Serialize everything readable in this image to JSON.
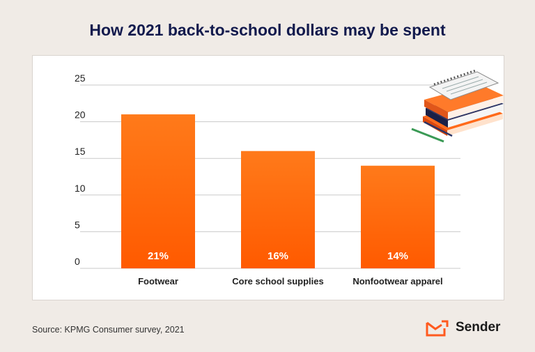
{
  "title": "How 2021 back-to-school dollars may be spent",
  "source": "Source: KPMG Consumer survey, 2021",
  "brand": {
    "name": "Sender",
    "logo_icon": "envelope-check-icon",
    "accent": "#ff5a1f"
  },
  "illustration": {
    "icon": "books-notebook-pencils-icon"
  },
  "colors": {
    "bar_top": "#ff7a1a",
    "bar_bottom": "#ff5a00",
    "grid": "#c9c9c9",
    "axis_text": "#222222",
    "title": "#121a4d"
  },
  "chart_data": {
    "type": "bar",
    "categories": [
      "Footwear",
      "Core school supplies",
      "Nonfootwear apparel"
    ],
    "values": [
      21,
      16,
      14
    ],
    "data_labels": [
      "21%",
      "16%",
      "14%"
    ],
    "ylim": [
      0,
      25
    ],
    "yticks": [
      0,
      5,
      10,
      15,
      20,
      25
    ],
    "grid": true
  }
}
